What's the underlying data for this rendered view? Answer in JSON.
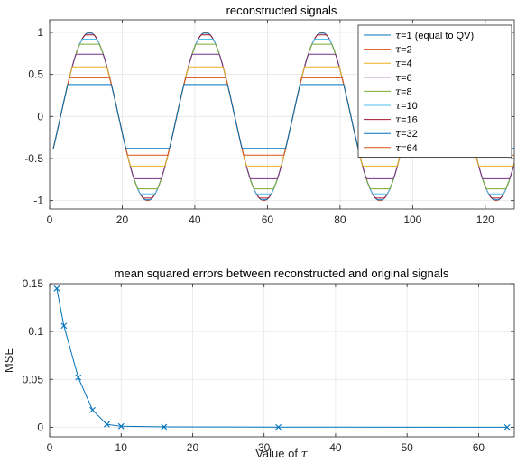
{
  "chart_data": [
    {
      "type": "line",
      "title": "reconstructed signals",
      "xlabel": "",
      "ylabel": "",
      "xlim": [
        0,
        128
      ],
      "ylim": [
        -1.1,
        1.15
      ],
      "xticks": [
        0,
        20,
        40,
        60,
        80,
        100,
        120
      ],
      "yticks": [
        -1,
        -0.5,
        0,
        0.5,
        1
      ],
      "ytick_labels": [
        "-1",
        "-0.5",
        "0",
        "0.5",
        "1"
      ],
      "grid": true,
      "legend_position": "top-right",
      "signal_x": [
        1,
        128
      ],
      "signal_period": 32,
      "series": [
        {
          "name": "τ=1 (equal to QV)",
          "label_prefix": "τ",
          "label_rest": "=1 (equal to QV)",
          "tau": 1,
          "clip": 0.38,
          "color": "#0072BD"
        },
        {
          "name": "τ=2",
          "label_prefix": "τ",
          "label_rest": "=2",
          "tau": 2,
          "clip": 0.46,
          "color": "#D95319"
        },
        {
          "name": "τ=4",
          "label_prefix": "τ",
          "label_rest": "=4",
          "tau": 4,
          "clip": 0.59,
          "color": "#EDB120"
        },
        {
          "name": "τ=6",
          "label_prefix": "τ",
          "label_rest": "=6",
          "tau": 6,
          "clip": 0.74,
          "color": "#7E2F8E"
        },
        {
          "name": "τ=8",
          "label_prefix": "τ",
          "label_rest": "=8",
          "tau": 8,
          "clip": 0.86,
          "color": "#77AC30"
        },
        {
          "name": "τ=10",
          "label_prefix": "τ",
          "label_rest": "=10",
          "tau": 10,
          "clip": 0.92,
          "color": "#4DBEEE"
        },
        {
          "name": "τ=16",
          "label_prefix": "τ",
          "label_rest": "=16",
          "tau": 16,
          "clip": 0.97,
          "color": "#A2142F"
        },
        {
          "name": "τ=32",
          "label_prefix": "τ",
          "label_rest": "=32",
          "tau": 32,
          "clip": 0.99,
          "color": "#0072BD"
        },
        {
          "name": "τ=64",
          "label_prefix": "τ",
          "label_rest": "=64",
          "tau": 64,
          "clip": 1.0,
          "color": "#D95319"
        }
      ]
    },
    {
      "type": "line",
      "title": "mean squared errors between reconstructed and original signals",
      "xlabel": "Value of τ",
      "xlabel_text": "Value of ",
      "xlabel_symbol": "τ",
      "ylabel": "MSE",
      "xlim": [
        0,
        65
      ],
      "ylim": [
        -0.01,
        0.15
      ],
      "xticks": [
        0,
        10,
        20,
        30,
        40,
        50,
        60
      ],
      "yticks": [
        0,
        0.05,
        0.1,
        0.15
      ],
      "ytick_labels": [
        "0",
        "0.05",
        "0.1",
        "0.15"
      ],
      "grid": true,
      "marker": "x",
      "color": "#0072BD",
      "x": [
        1,
        2,
        4,
        6,
        8,
        10,
        16,
        32,
        64
      ],
      "y": [
        0.145,
        0.106,
        0.052,
        0.018,
        0.003,
        0.001,
        0.0003,
        0.0001,
        0.0
      ]
    }
  ]
}
